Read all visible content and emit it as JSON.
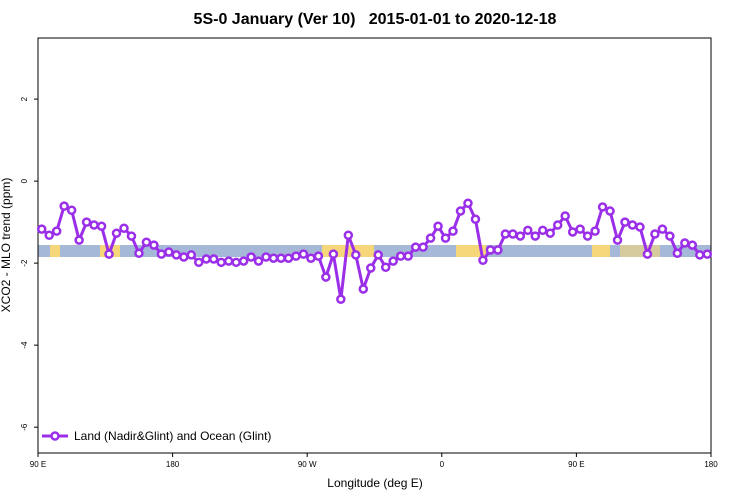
{
  "chart_data": {
    "type": "line",
    "title": "5S-0 January (Ver 10)   2015-01-01 to 2020-12-18",
    "x_label": "Longitude (deg E)",
    "y_label": "XCO2 - MLO trend (ppm)",
    "xlim": [
      90,
      540
    ],
    "ylim": [
      -6.63,
      3.49
    ],
    "xticks": [
      {
        "value": 90,
        "label": "90 E"
      },
      {
        "value": 180,
        "label": "180"
      },
      {
        "value": 270,
        "label": "90 W"
      },
      {
        "value": 360,
        "label": "0"
      },
      {
        "value": 450,
        "label": "90 E"
      },
      {
        "value": 540,
        "label": "180"
      }
    ],
    "yticks": [
      2,
      0,
      -2,
      -4,
      -6
    ],
    "legend_position": "bottom-left",
    "x": [
      92.5,
      97.5,
      102.5,
      107.5,
      112.5,
      117.5,
      122.5,
      127.5,
      132.5,
      137.5,
      142.5,
      147.5,
      152.5,
      157.5,
      162.5,
      167.5,
      172.5,
      177.5,
      182.5,
      187.5,
      192.5,
      197.5,
      202.5,
      207.5,
      212.5,
      217.5,
      222.5,
      227.5,
      232.5,
      237.5,
      242.5,
      247.5,
      252.5,
      257.5,
      262.5,
      267.5,
      272.5,
      277.5,
      282.5,
      287.5,
      292.5,
      297.5,
      302.5,
      307.5,
      312.5,
      317.5,
      322.5,
      327.5,
      332.5,
      337.5,
      342.5,
      347.5,
      352.5,
      357.5,
      362.5,
      367.5,
      372.5,
      377.5,
      382.5,
      387.5,
      392.5,
      397.5,
      402.5,
      407.5,
      412.5,
      417.5,
      422.5,
      427.5,
      432.5,
      437.5,
      442.5,
      447.5,
      452.5,
      457.5,
      462.5,
      467.5,
      472.5,
      477.5,
      482.5,
      487.5,
      492.5,
      497.5,
      502.5,
      507.5,
      512.5,
      517.5,
      522.5,
      527.5,
      532.5,
      537.5
    ],
    "series": [
      {
        "name": "Land (Nadir&Glint) and Ocean (Glint)",
        "color": "#9b2ee8",
        "values": [
          -1.17,
          -1.32,
          -1.22,
          -0.61,
          -0.71,
          -1.44,
          -1.0,
          -1.07,
          -1.1,
          -1.78,
          -1.27,
          -1.15,
          -1.34,
          -1.76,
          -1.49,
          -1.56,
          -1.78,
          -1.73,
          -1.8,
          -1.85,
          -1.8,
          -1.98,
          -1.9,
          -1.9,
          -1.98,
          -1.95,
          -1.98,
          -1.95,
          -1.85,
          -1.95,
          -1.85,
          -1.88,
          -1.88,
          -1.88,
          -1.83,
          -1.78,
          -1.88,
          -1.83,
          -2.34,
          -1.78,
          -2.88,
          -1.32,
          -1.8,
          -2.63,
          -2.12,
          -1.8,
          -2.1,
          -1.95,
          -1.83,
          -1.83,
          -1.61,
          -1.61,
          -1.39,
          -1.1,
          -1.39,
          -1.22,
          -0.73,
          -0.54,
          -0.93,
          -1.93,
          -1.68,
          -1.68,
          -1.29,
          -1.29,
          -1.34,
          -1.2,
          -1.34,
          -1.2,
          -1.27,
          -1.07,
          -0.85,
          -1.24,
          -1.17,
          -1.34,
          -1.22,
          -0.63,
          -0.73,
          -1.44,
          -1.0,
          -1.07,
          -1.12,
          -1.78,
          -1.29,
          -1.17,
          -1.34,
          -1.76,
          -1.51,
          -1.56,
          -1.8,
          -1.78
        ]
      }
    ]
  }
}
